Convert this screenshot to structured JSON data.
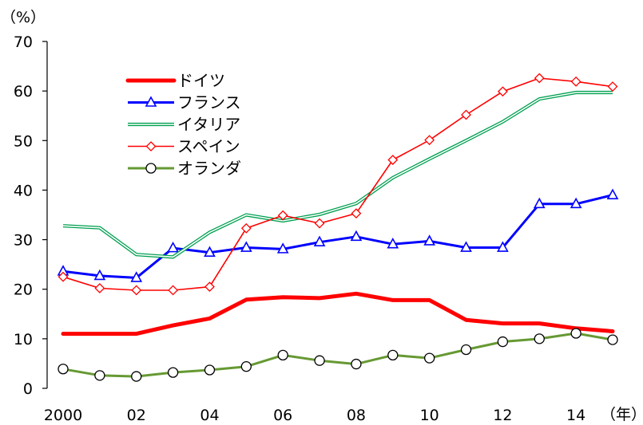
{
  "chart_data": {
    "type": "line",
    "title": "",
    "y_unit_label": "（%）",
    "x_unit_label": "（年）",
    "ylim": [
      0,
      70
    ],
    "yticks": [
      0,
      10,
      20,
      30,
      40,
      50,
      60,
      70
    ],
    "x": [
      2000,
      2001,
      2002,
      2003,
      2004,
      2005,
      2006,
      2007,
      2008,
      2009,
      2010,
      2011,
      2012,
      2013,
      2014,
      2015
    ],
    "x_tick_labels": [
      {
        "x": 2000,
        "label": "2000"
      },
      {
        "x": 2002,
        "label": "02"
      },
      {
        "x": 2004,
        "label": "04"
      },
      {
        "x": 2006,
        "label": "06"
      },
      {
        "x": 2008,
        "label": "08"
      },
      {
        "x": 2010,
        "label": "10"
      },
      {
        "x": 2012,
        "label": "12"
      },
      {
        "x": 2014,
        "label": "14"
      }
    ],
    "legend_position": "upper-left",
    "series": [
      {
        "name": "ドイツ",
        "color": "#ff0000",
        "style": "thick",
        "marker": "none",
        "values": [
          11,
          11,
          11,
          12.7,
          14.1,
          17.9,
          18.4,
          18.2,
          19.1,
          17.8,
          17.8,
          13.8,
          13.1,
          13.1,
          12.1,
          11.5
        ]
      },
      {
        "name": "フランス",
        "color": "#0000ff",
        "style": "medium",
        "marker": "triangle",
        "values": [
          23.6,
          22.7,
          22.3,
          28.3,
          27.4,
          28.4,
          28.1,
          29.5,
          30.6,
          29.1,
          29.7,
          28.4,
          28.4,
          37.2,
          37.2,
          39
        ]
      },
      {
        "name": "イタリア",
        "color": "#00a050",
        "style": "double",
        "marker": "none",
        "values": [
          32.8,
          32.4,
          27,
          26.5,
          31.5,
          35,
          33.8,
          35.1,
          37.3,
          42.5,
          46.3,
          50,
          53.8,
          58.4,
          59.7,
          59.7
        ]
      },
      {
        "name": "スペイン",
        "color": "#ff0000",
        "style": "thin",
        "marker": "diamond",
        "values": [
          22.5,
          20.2,
          19.8,
          19.8,
          20.5,
          32.3,
          34.9,
          33.3,
          35.3,
          46.1,
          50.1,
          55.2,
          59.9,
          62.6,
          61.9,
          60.9
        ]
      },
      {
        "name": "オランダ",
        "color": "#669933",
        "style": "medium",
        "marker": "circle",
        "values": [
          3.9,
          2.6,
          2.4,
          3.2,
          3.7,
          4.4,
          6.7,
          5.6,
          4.9,
          6.7,
          6.1,
          7.8,
          9.4,
          10,
          11.1,
          9.8
        ]
      }
    ]
  }
}
